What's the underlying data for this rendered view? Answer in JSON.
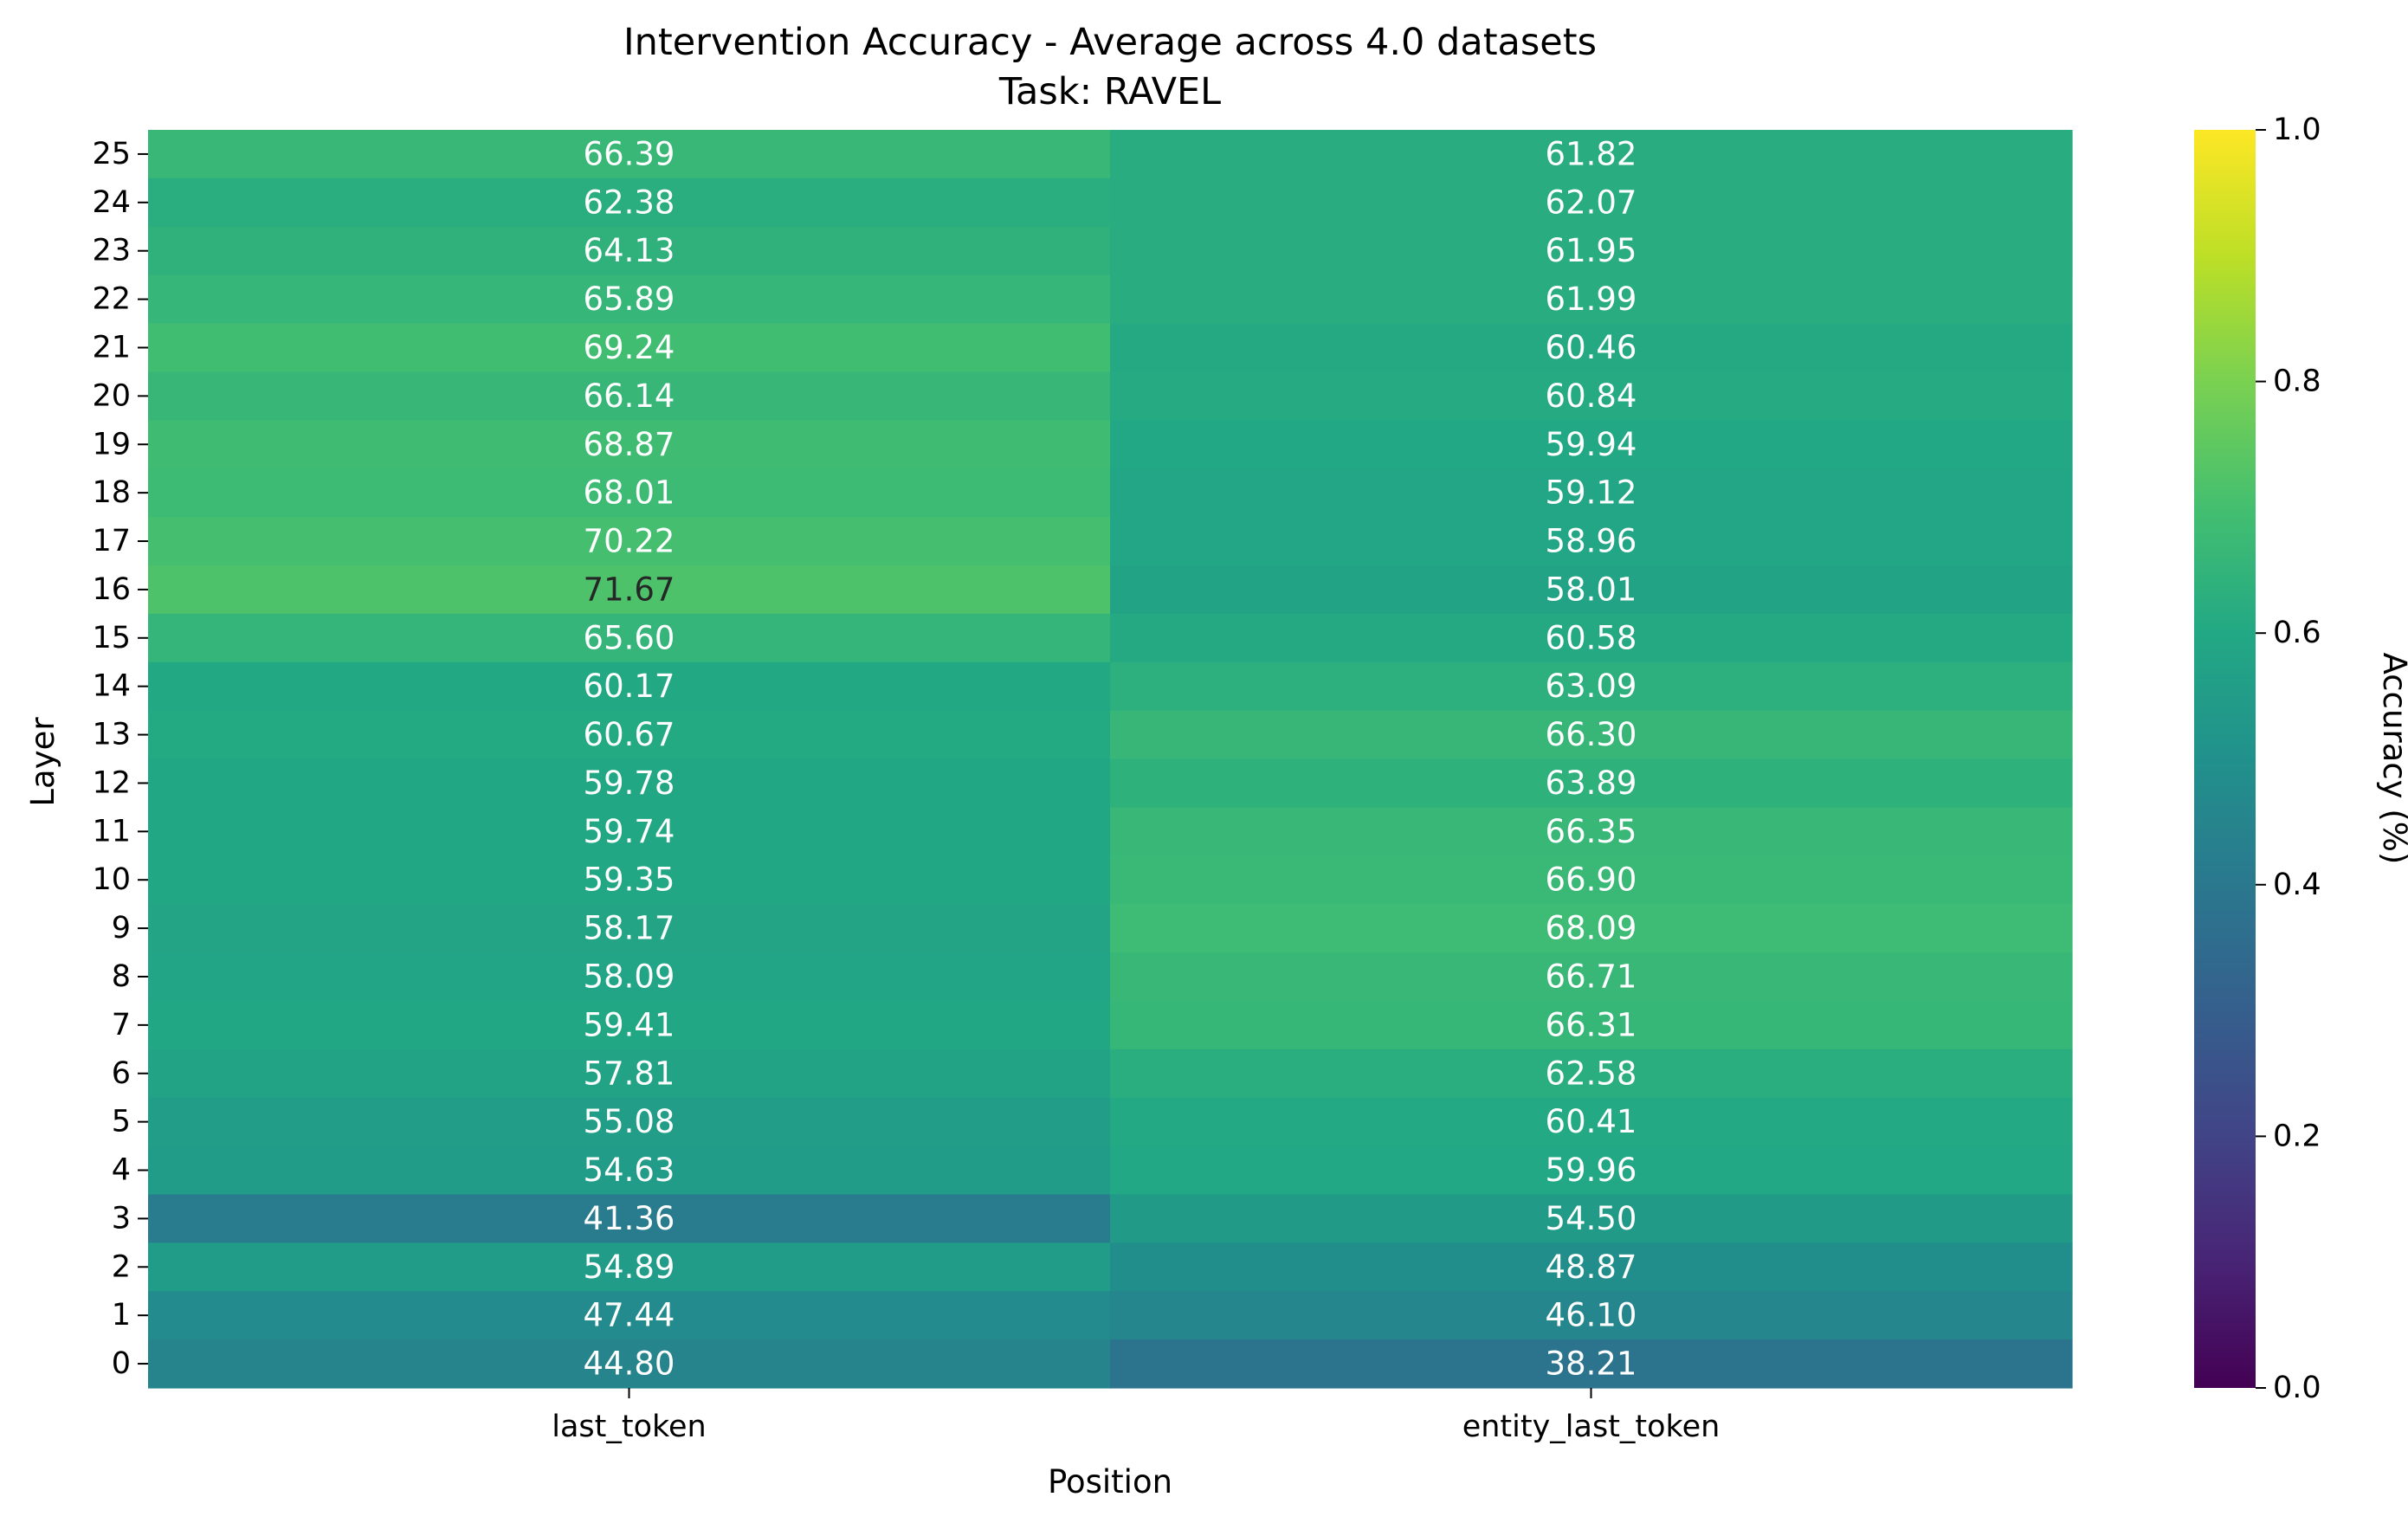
{
  "chart_data": {
    "type": "heatmap",
    "title": "Intervention Accuracy - Average across 4.0 datasets",
    "subtitle": "Task: RAVEL",
    "xlabel": "Position",
    "ylabel": "Layer",
    "x_categories": [
      "last_token",
      "entity_last_token"
    ],
    "y_categories": [
      "25",
      "24",
      "23",
      "22",
      "21",
      "20",
      "19",
      "18",
      "17",
      "16",
      "15",
      "14",
      "13",
      "12",
      "11",
      "10",
      "9",
      "8",
      "7",
      "6",
      "5",
      "4",
      "3",
      "2",
      "1",
      "0"
    ],
    "values": [
      [
        66.39,
        61.82
      ],
      [
        62.38,
        62.07
      ],
      [
        64.13,
        61.95
      ],
      [
        65.89,
        61.99
      ],
      [
        69.24,
        60.46
      ],
      [
        66.14,
        60.84
      ],
      [
        68.87,
        59.94
      ],
      [
        68.01,
        59.12
      ],
      [
        70.22,
        58.96
      ],
      [
        71.67,
        58.01
      ],
      [
        65.6,
        60.58
      ],
      [
        60.17,
        63.09
      ],
      [
        60.67,
        66.3
      ],
      [
        59.78,
        63.89
      ],
      [
        59.74,
        66.35
      ],
      [
        59.35,
        66.9
      ],
      [
        58.17,
        68.09
      ],
      [
        58.09,
        66.71
      ],
      [
        59.41,
        66.31
      ],
      [
        57.81,
        62.58
      ],
      [
        55.08,
        60.41
      ],
      [
        54.63,
        59.96
      ],
      [
        41.36,
        54.5
      ],
      [
        54.89,
        48.87
      ],
      [
        47.44,
        46.1
      ],
      [
        44.8,
        38.21
      ]
    ],
    "value_labels": [
      [
        "66.39",
        "61.82"
      ],
      [
        "62.38",
        "62.07"
      ],
      [
        "64.13",
        "61.95"
      ],
      [
        "65.89",
        "61.99"
      ],
      [
        "69.24",
        "60.46"
      ],
      [
        "66.14",
        "60.84"
      ],
      [
        "68.87",
        "59.94"
      ],
      [
        "68.01",
        "59.12"
      ],
      [
        "70.22",
        "58.96"
      ],
      [
        "71.67",
        "58.01"
      ],
      [
        "65.60",
        "60.58"
      ],
      [
        "60.17",
        "63.09"
      ],
      [
        "60.67",
        "66.30"
      ],
      [
        "59.78",
        "63.89"
      ],
      [
        "59.74",
        "66.35"
      ],
      [
        "59.35",
        "66.90"
      ],
      [
        "58.17",
        "68.09"
      ],
      [
        "58.09",
        "66.71"
      ],
      [
        "59.41",
        "66.31"
      ],
      [
        "57.81",
        "62.58"
      ],
      [
        "55.08",
        "60.41"
      ],
      [
        "54.63",
        "59.96"
      ],
      [
        "41.36",
        "54.50"
      ],
      [
        "54.89",
        "48.87"
      ],
      [
        "47.44",
        "46.10"
      ],
      [
        "44.80",
        "38.21"
      ]
    ],
    "colormap": "viridis",
    "colorbar": {
      "label": "Accuracy (%)",
      "range": [
        0.0,
        1.0
      ],
      "ticks": [
        "0.0",
        "0.2",
        "0.4",
        "0.6",
        "0.8",
        "1.0"
      ]
    },
    "grid": false
  }
}
